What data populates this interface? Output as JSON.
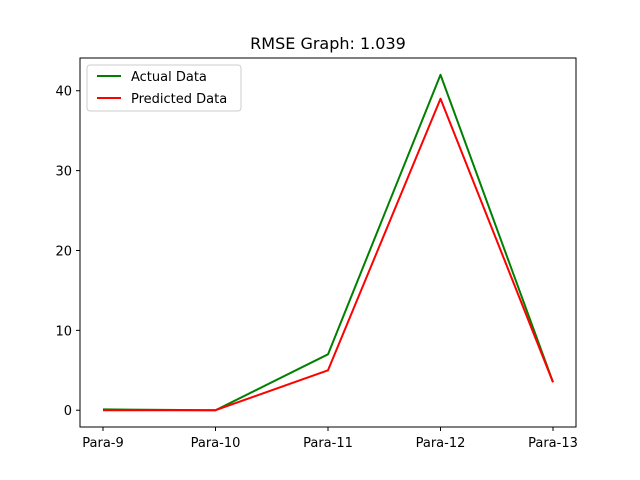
{
  "chart_data": {
    "type": "line",
    "title": "RMSE Graph: 1.039",
    "xlabel": "",
    "ylabel": "",
    "categories": [
      "Para-9",
      "Para-10",
      "Para-11",
      "Para-12",
      "Para-13"
    ],
    "ylim": [
      -2.1,
      44.1
    ],
    "yticks": [
      0,
      10,
      20,
      30,
      40
    ],
    "grid": false,
    "legend_position": "top-left",
    "series": [
      {
        "name": "Actual Data",
        "color": "#008000",
        "values": [
          0.1,
          0.0,
          7.0,
          42.0,
          3.5
        ]
      },
      {
        "name": "Predicted Data",
        "color": "#ff0000",
        "values": [
          0.0,
          0.0,
          5.0,
          39.0,
          3.5
        ]
      }
    ]
  }
}
